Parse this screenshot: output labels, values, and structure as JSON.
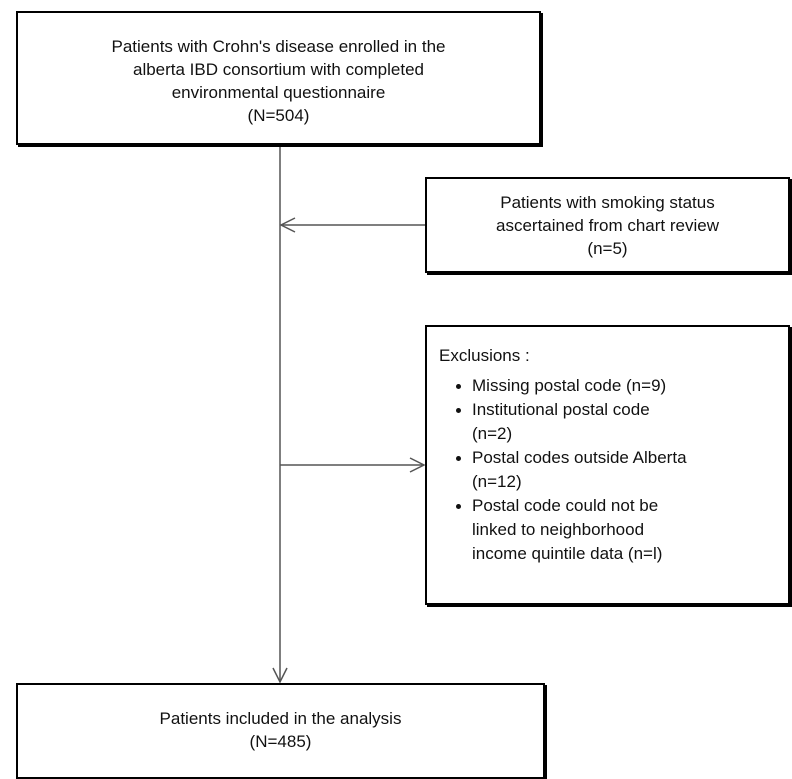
{
  "nodes": [
    {
      "lines": [
        "Patients with Crohn's disease enrolled in the",
        "alberta IBD consortium with completed",
        "environmental questionnaire",
        "(N=504)"
      ]
    },
    {
      "lines": [
        "Patients with smoking status",
        "ascertained from chart review",
        "(n=5)"
      ]
    },
    {
      "title": "Exclusions :",
      "items": [
        {
          "lines": [
            "Missing postal code (n=9)"
          ]
        },
        {
          "lines": [
            "Institutional postal code",
            "(n=2)"
          ]
        },
        {
          "lines": [
            "Postal codes outside Alberta",
            "(n=12)"
          ]
        },
        {
          "lines": [
            "Postal code could not be",
            "linked to neighborhood",
            "income quintile data (n=l)"
          ]
        }
      ]
    },
    {
      "lines": [
        "Patients included in the analysis",
        "(N=485)"
      ]
    }
  ]
}
